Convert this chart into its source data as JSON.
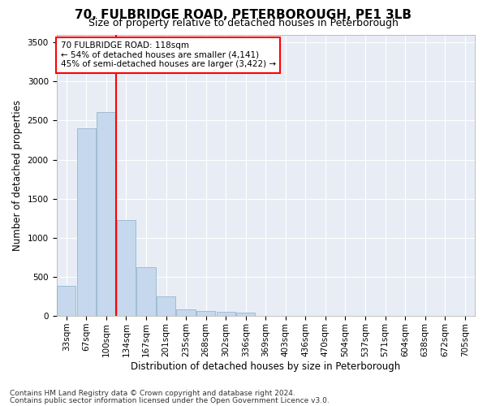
{
  "title": "70, FULBRIDGE ROAD, PETERBOROUGH, PE1 3LB",
  "subtitle": "Size of property relative to detached houses in Peterborough",
  "xlabel": "Distribution of detached houses by size in Peterborough",
  "ylabel": "Number of detached properties",
  "footnote1": "Contains HM Land Registry data © Crown copyright and database right 2024.",
  "footnote2": "Contains public sector information licensed under the Open Government Licence v3.0.",
  "annotation_title": "70 FULBRIDGE ROAD: 118sqm",
  "annotation_line2": "← 54% of detached houses are smaller (4,141)",
  "annotation_line3": "45% of semi-detached houses are larger (3,422) →",
  "bar_color": "#c5d8ed",
  "bar_edge_color": "#8aaec8",
  "vline_color": "red",
  "vline_x": 2.5,
  "categories": [
    "33sqm",
    "67sqm",
    "100sqm",
    "134sqm",
    "167sqm",
    "201sqm",
    "235sqm",
    "268sqm",
    "302sqm",
    "336sqm",
    "369sqm",
    "403sqm",
    "436sqm",
    "470sqm",
    "504sqm",
    "537sqm",
    "571sqm",
    "604sqm",
    "638sqm",
    "672sqm",
    "705sqm"
  ],
  "values": [
    390,
    2400,
    2610,
    1230,
    620,
    250,
    90,
    60,
    55,
    40,
    0,
    0,
    0,
    0,
    0,
    0,
    0,
    0,
    0,
    0,
    0
  ],
  "ylim": [
    0,
    3600
  ],
  "yticks": [
    0,
    500,
    1000,
    1500,
    2000,
    2500,
    3000,
    3500
  ],
  "background_color": "#ffffff",
  "plot_bg_color": "#e8edf5",
  "grid_color": "#ffffff",
  "title_fontsize": 11,
  "subtitle_fontsize": 9,
  "axis_label_fontsize": 8.5,
  "tick_fontsize": 7.5,
  "annotation_fontsize": 7.5,
  "footnote_fontsize": 6.5
}
